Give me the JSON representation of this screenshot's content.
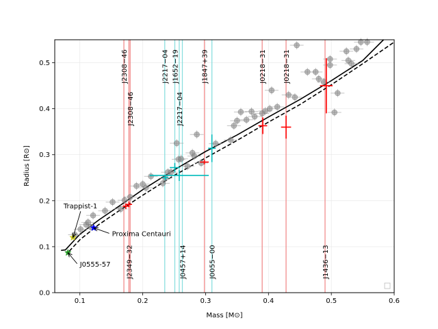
{
  "chart_data": {
    "type": "scatter",
    "xlabel": "Mass [M⊙]",
    "ylabel": "Radius [R⊙]",
    "xlim": [
      0.06,
      0.6
    ],
    "ylim": [
      0.0,
      0.55
    ],
    "xticks": [
      0.1,
      0.2,
      0.3,
      0.4,
      0.5,
      0.6
    ],
    "yticks": [
      0.0,
      0.1,
      0.2,
      0.3,
      0.4,
      0.5
    ],
    "grid": true,
    "legend": "bottom-right",
    "colors": {
      "background_stars": "#808080",
      "eclipsing_binaries": "#ff0000",
      "eb_mass_lines": "#f08080",
      "new_binaries": "#00bcbc",
      "new_mass_lines": "#7fdcdc",
      "model_solid": "#000000",
      "model_dashed": "#000000"
    },
    "models": [
      {
        "style": "solid",
        "x": [
          0.07,
          0.077,
          0.085,
          0.1,
          0.13,
          0.16,
          0.2,
          0.25,
          0.3,
          0.35,
          0.4,
          0.45,
          0.5,
          0.55,
          0.583
        ],
        "y": [
          0.092,
          0.093,
          0.105,
          0.127,
          0.158,
          0.186,
          0.224,
          0.267,
          0.307,
          0.343,
          0.382,
          0.42,
          0.461,
          0.505,
          0.55
        ]
      },
      {
        "style": "dashed",
        "x": [
          0.083,
          0.1,
          0.13,
          0.16,
          0.2,
          0.25,
          0.3,
          0.35,
          0.4,
          0.45,
          0.5,
          0.55,
          0.6
        ],
        "y": [
          0.09,
          0.115,
          0.148,
          0.176,
          0.212,
          0.255,
          0.293,
          0.331,
          0.371,
          0.409,
          0.452,
          0.498,
          0.545
        ]
      }
    ],
    "background_stars": [
      {
        "x": 0.092,
        "y": 0.126
      },
      {
        "x": 0.101,
        "y": 0.138
      },
      {
        "x": 0.11,
        "y": 0.148
      },
      {
        "x": 0.113,
        "y": 0.153
      },
      {
        "x": 0.117,
        "y": 0.143
      },
      {
        "x": 0.121,
        "y": 0.168
      },
      {
        "x": 0.14,
        "y": 0.178
      },
      {
        "x": 0.152,
        "y": 0.197
      },
      {
        "x": 0.165,
        "y": 0.182
      },
      {
        "x": 0.171,
        "y": 0.201
      },
      {
        "x": 0.18,
        "y": 0.208
      },
      {
        "x": 0.19,
        "y": 0.232
      },
      {
        "x": 0.2,
        "y": 0.236
      },
      {
        "x": 0.205,
        "y": 0.228
      },
      {
        "x": 0.213,
        "y": 0.253
      },
      {
        "x": 0.232,
        "y": 0.238
      },
      {
        "x": 0.236,
        "y": 0.249
      },
      {
        "x": 0.24,
        "y": 0.262
      },
      {
        "x": 0.245,
        "y": 0.262
      },
      {
        "x": 0.254,
        "y": 0.325
      },
      {
        "x": 0.257,
        "y": 0.29
      },
      {
        "x": 0.261,
        "y": 0.291
      },
      {
        "x": 0.271,
        "y": 0.275
      },
      {
        "x": 0.279,
        "y": 0.304
      },
      {
        "x": 0.282,
        "y": 0.297
      },
      {
        "x": 0.286,
        "y": 0.344
      },
      {
        "x": 0.293,
        "y": 0.282
      },
      {
        "x": 0.316,
        "y": 0.324
      },
      {
        "x": 0.34,
        "y": 0.332
      },
      {
        "x": 0.345,
        "y": 0.363
      },
      {
        "x": 0.35,
        "y": 0.374
      },
      {
        "x": 0.356,
        "y": 0.393
      },
      {
        "x": 0.365,
        "y": 0.376
      },
      {
        "x": 0.373,
        "y": 0.394
      },
      {
        "x": 0.378,
        "y": 0.383
      },
      {
        "x": 0.39,
        "y": 0.39
      },
      {
        "x": 0.395,
        "y": 0.395
      },
      {
        "x": 0.402,
        "y": 0.4
      },
      {
        "x": 0.405,
        "y": 0.44
      },
      {
        "x": 0.414,
        "y": 0.404
      },
      {
        "x": 0.432,
        "y": 0.43
      },
      {
        "x": 0.442,
        "y": 0.425
      },
      {
        "x": 0.445,
        "y": 0.538
      },
      {
        "x": 0.462,
        "y": 0.48
      },
      {
        "x": 0.475,
        "y": 0.48
      },
      {
        "x": 0.48,
        "y": 0.465
      },
      {
        "x": 0.488,
        "y": 0.458
      },
      {
        "x": 0.498,
        "y": 0.508
      },
      {
        "x": 0.498,
        "y": 0.495
      },
      {
        "x": 0.505,
        "y": 0.392
      },
      {
        "x": 0.51,
        "y": 0.434
      },
      {
        "x": 0.524,
        "y": 0.525
      },
      {
        "x": 0.527,
        "y": 0.505
      },
      {
        "x": 0.532,
        "y": 0.498
      },
      {
        "x": 0.54,
        "y": 0.53
      },
      {
        "x": 0.547,
        "y": 0.545
      },
      {
        "x": 0.557,
        "y": 0.545
      }
    ],
    "eclipsing_binaries": [
      {
        "x": 0.173,
        "y": 0.188,
        "xerr": 0.005,
        "yerr": 0.006
      },
      {
        "x": 0.178,
        "y": 0.192,
        "xerr": 0.005,
        "yerr": 0.006
      },
      {
        "x": 0.298,
        "y": 0.284,
        "xerr": 0.007,
        "yerr": 0.005
      },
      {
        "x": 0.391,
        "y": 0.363,
        "xerr": 0.007,
        "yerr": 0.018
      },
      {
        "x": 0.428,
        "y": 0.36,
        "xerr": 0.008,
        "yerr": 0.025
      },
      {
        "x": 0.492,
        "y": 0.45,
        "xerr": 0.01,
        "yerr": 0.06
      }
    ],
    "new_binaries": [
      {
        "x": 0.236,
        "y": 0.25,
        "xerr": 0.005,
        "yerr": 0.005
      },
      {
        "x": 0.251,
        "y": 0.272,
        "xerr": 0.008,
        "yerr": 0.01
      },
      {
        "x": 0.258,
        "y": 0.255,
        "xerr": 0.047,
        "yerr": 0.012
      },
      {
        "x": 0.31,
        "y": 0.314,
        "xerr": 0.006,
        "yerr": 0.03
      }
    ],
    "highlighted": [
      {
        "name": "Trappist-1",
        "x": 0.089,
        "y": 0.12,
        "color": "#c8c820",
        "marker": "star"
      },
      {
        "name": "Proxima Centauri",
        "x": 0.122,
        "y": 0.141,
        "color": "#0000ff",
        "marker": "star"
      },
      {
        "name": "J0555-57",
        "x": 0.081,
        "y": 0.087,
        "color": "#2ca02c",
        "marker": "star"
      }
    ],
    "labels": [
      {
        "text": "Trappist-1",
        "x": 0.074,
        "y": 0.183,
        "arrow_to": [
          0.089,
          0.12
        ]
      },
      {
        "text": "Proxima Centauri",
        "x": 0.151,
        "y": 0.123,
        "arrow_to": [
          0.122,
          0.141
        ]
      },
      {
        "text": "J0555-57",
        "x": 0.1,
        "y": 0.057,
        "arrow_to": [
          0.081,
          0.087
        ]
      }
    ],
    "mass_lines": [
      {
        "x": 0.17,
        "kind": "eb",
        "label": "J2308−46",
        "label_y": 0.455
      },
      {
        "x": 0.18,
        "kind": "eb",
        "label": "J2308−46",
        "label_y": 0.363
      },
      {
        "x": 0.178,
        "kind": "eb",
        "label": "J2349−32",
        "label_y": 0.03
      },
      {
        "x": 0.235,
        "kind": "new",
        "label": "J2217−04",
        "label_y": 0.455
      },
      {
        "x": 0.251,
        "kind": "new",
        "label": "J1652−19",
        "label_y": 0.455
      },
      {
        "x": 0.258,
        "kind": "new",
        "label": "J2217−04",
        "label_y": 0.363
      },
      {
        "x": 0.263,
        "kind": "new",
        "label": "J0457+14",
        "label_y": 0.03
      },
      {
        "x": 0.298,
        "kind": "eb",
        "label": "J1847+39",
        "label_y": 0.455
      },
      {
        "x": 0.31,
        "kind": "new",
        "label": "J0055−00",
        "label_y": 0.03
      },
      {
        "x": 0.39,
        "kind": "eb",
        "label": "J0218−31",
        "label_y": 0.455
      },
      {
        "x": 0.428,
        "kind": "eb",
        "label": "J0218−31",
        "label_y": 0.455
      },
      {
        "x": 0.49,
        "kind": "eb",
        "label": "J1436−13",
        "label_y": 0.03
      }
    ]
  }
}
